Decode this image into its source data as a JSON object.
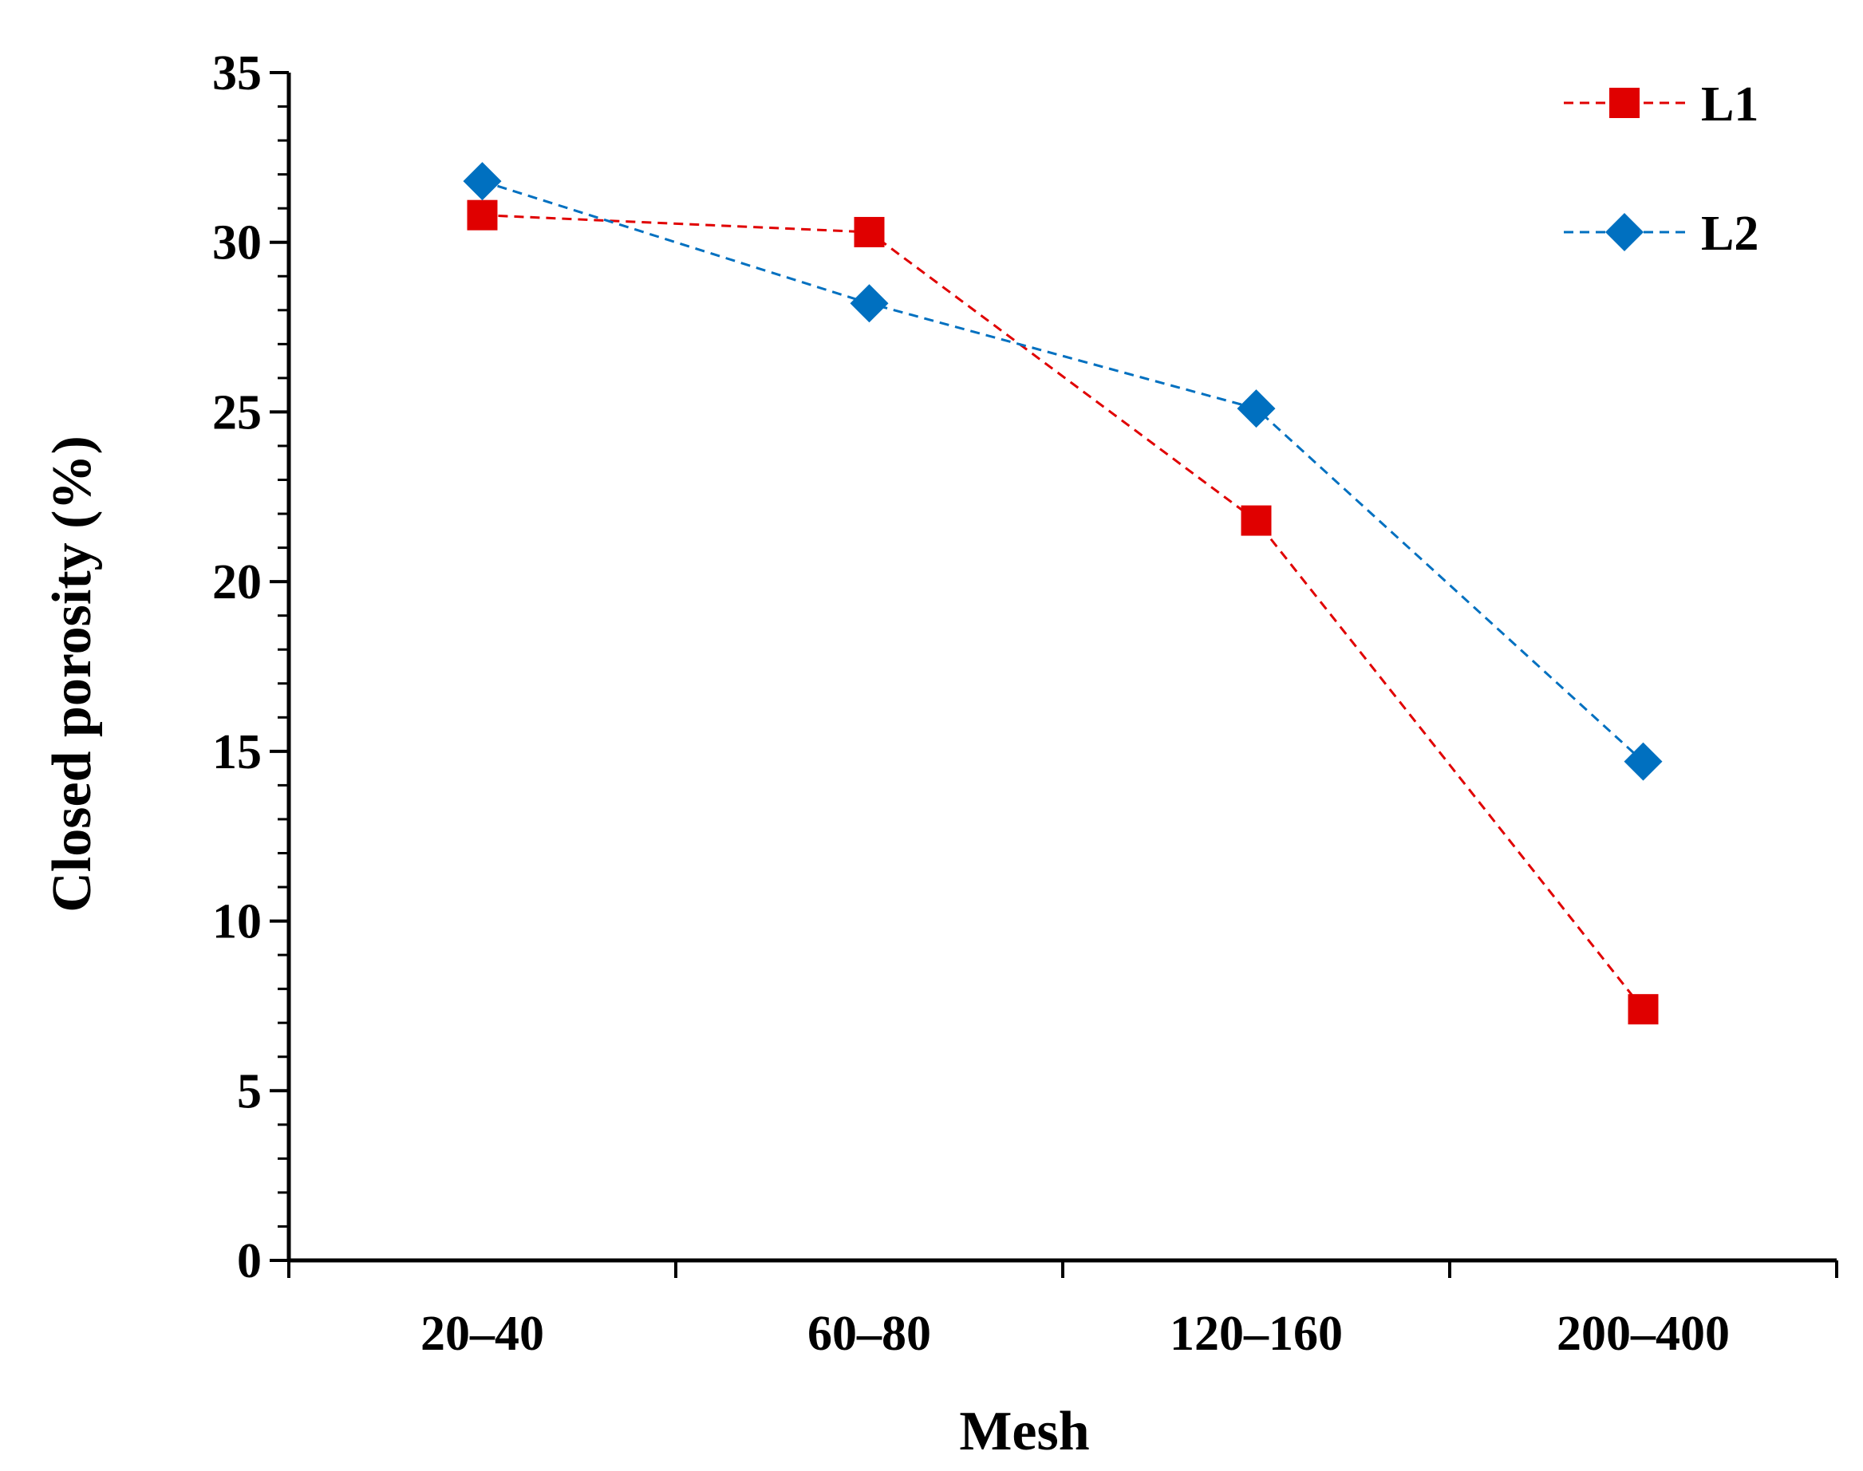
{
  "chart_data": {
    "type": "line",
    "title": "",
    "xlabel": "Mesh",
    "ylabel": "Closed porosity (%)",
    "categories": [
      "20–40",
      "60–80",
      "120–160",
      "200–400"
    ],
    "ylim": [
      0,
      35
    ],
    "yticks": [
      0,
      5,
      10,
      15,
      20,
      25,
      30,
      35
    ],
    "ytick_labels": [
      "0",
      "5",
      "10",
      "15",
      "20",
      "25",
      "30",
      "35"
    ],
    "y_minor_step": 1,
    "grid": false,
    "legend_position": "top-right",
    "series": [
      {
        "name": "L1",
        "values": [
          30.8,
          30.3,
          21.8,
          7.4
        ],
        "color": "#e00000",
        "marker": "square",
        "line_style": "dashed"
      },
      {
        "name": "L2",
        "values": [
          31.8,
          28.2,
          25.1,
          14.7
        ],
        "color": "#0070c0",
        "marker": "diamond",
        "line_style": "dashed"
      }
    ]
  }
}
